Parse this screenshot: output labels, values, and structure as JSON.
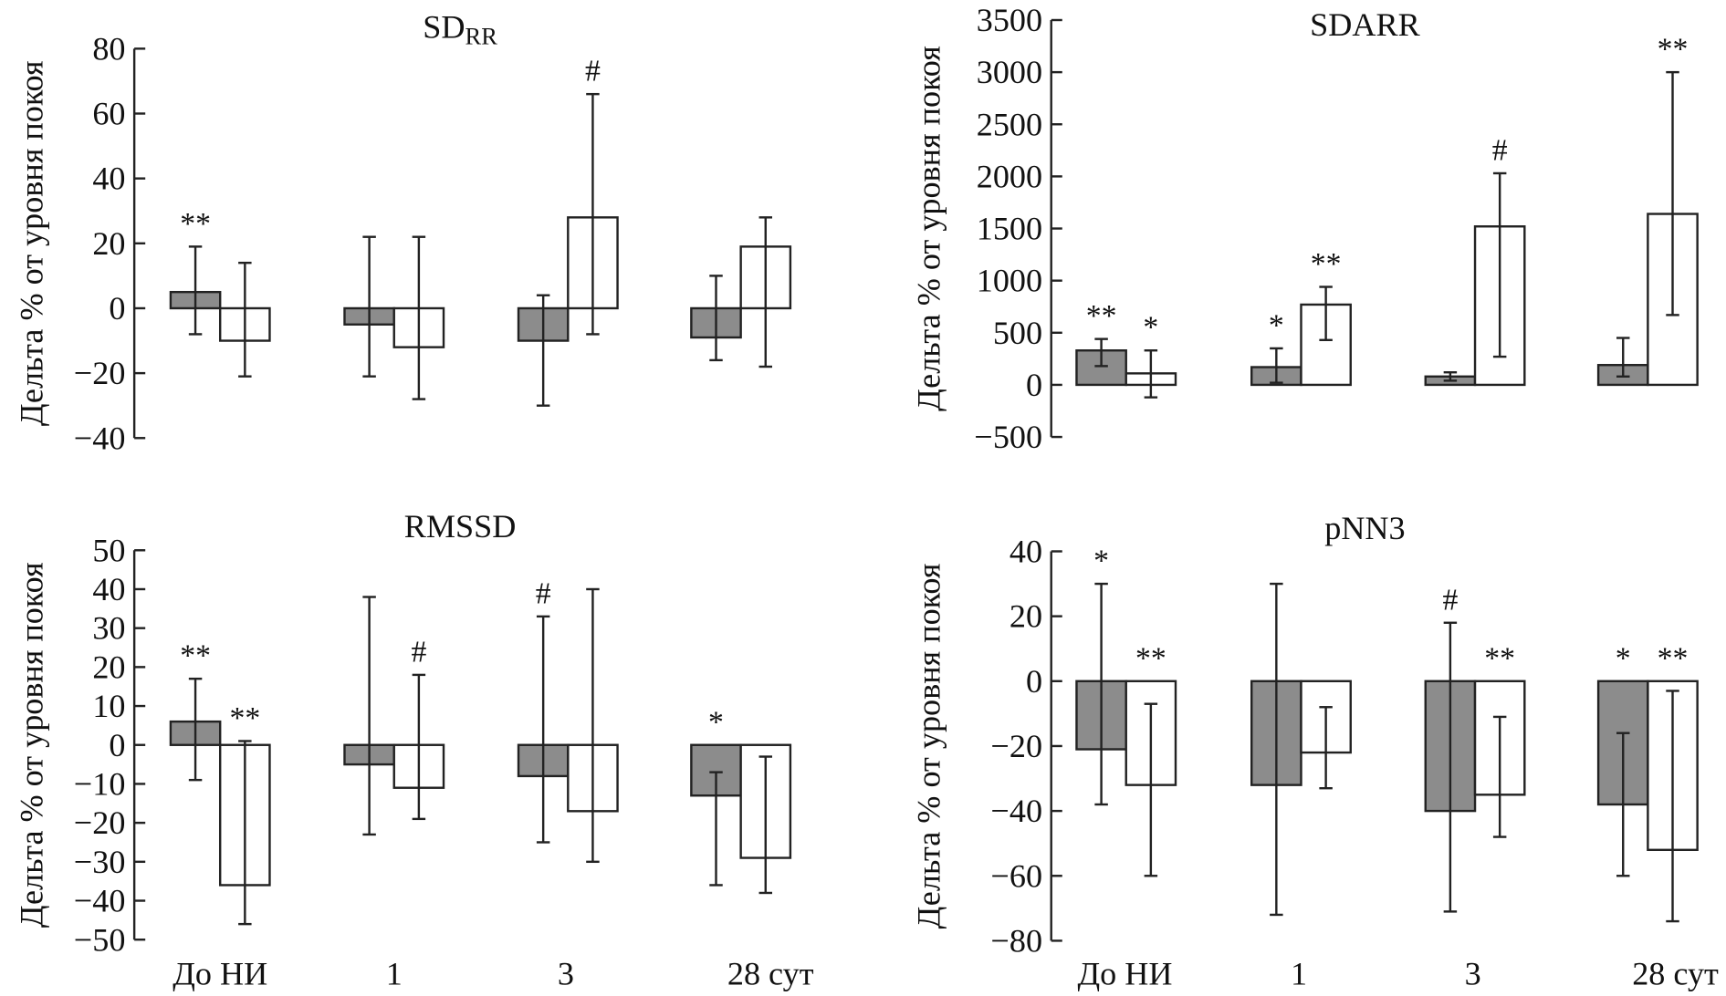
{
  "colors": {
    "group1": "#8c8c8c",
    "group2": "#ffffff",
    "stroke": "#222222"
  },
  "chart_data": [
    {
      "type": "bar",
      "title": "SD",
      "title_sub": "RR",
      "ylabel": "Дельта % от уровня покоя",
      "ylim": [
        -40,
        80
      ],
      "yticks": [
        -40,
        -20,
        0,
        20,
        40,
        60,
        80
      ],
      "categories": [
        "До НИ",
        "1",
        "3",
        "28 сут"
      ],
      "show_xlabels": false,
      "series": [
        {
          "values": [
            5,
            -5,
            -10,
            -9
          ],
          "err_low": [
            -8,
            -21,
            -30,
            -16
          ],
          "err_high": [
            19,
            22,
            4,
            10
          ],
          "annotations": [
            "**",
            "",
            "",
            ""
          ]
        },
        {
          "values": [
            -10,
            -12,
            28,
            19
          ],
          "err_low": [
            -21,
            -28,
            -8,
            -18
          ],
          "err_high": [
            14,
            22,
            66,
            28
          ],
          "annotations": [
            "",
            "",
            "#",
            ""
          ]
        }
      ]
    },
    {
      "type": "bar",
      "title": "SDARR",
      "title_sub": "",
      "ylabel": "Дельта % от уровня покоя",
      "ylim": [
        -500,
        3500
      ],
      "yticks": [
        -500,
        0,
        500,
        1000,
        1500,
        2000,
        2500,
        3000,
        3500
      ],
      "categories": [
        "До НИ",
        "1",
        "3",
        "28 сут"
      ],
      "show_xlabels": false,
      "series": [
        {
          "values": [
            330,
            170,
            80,
            190
          ],
          "err_low": [
            180,
            20,
            40,
            80
          ],
          "err_high": [
            440,
            350,
            120,
            450
          ],
          "annotations": [
            "**",
            "*",
            "",
            ""
          ]
        },
        {
          "values": [
            110,
            770,
            1520,
            1640
          ],
          "err_low": [
            -120,
            430,
            270,
            670
          ],
          "err_high": [
            330,
            940,
            2030,
            3000
          ],
          "annotations": [
            "*",
            "**",
            "#",
            "**"
          ]
        }
      ]
    },
    {
      "type": "bar",
      "title": "RMSSD",
      "title_sub": "",
      "ylabel": "Дельта % от уровня покоя",
      "ylim": [
        -50,
        50
      ],
      "yticks": [
        -50,
        -40,
        -30,
        -20,
        -10,
        0,
        10,
        20,
        30,
        40,
        50
      ],
      "categories": [
        "До НИ",
        "1",
        "3",
        "28 сут"
      ],
      "show_xlabels": true,
      "series": [
        {
          "values": [
            6,
            -5,
            -8,
            -13
          ],
          "err_low": [
            -9,
            -23,
            -25,
            -36
          ],
          "err_high": [
            17,
            38,
            33,
            -7
          ],
          "annotations": [
            "**",
            "",
            "#",
            "*"
          ]
        },
        {
          "values": [
            -36,
            -11,
            -17,
            -29
          ],
          "err_low": [
            -46,
            -19,
            -30,
            -38
          ],
          "err_high": [
            1,
            18,
            40,
            -3
          ],
          "annotations": [
            "**",
            "#",
            "",
            ""
          ]
        }
      ]
    },
    {
      "type": "bar",
      "title": "pNN3",
      "title_sub": "",
      "ylabel": "Дельта % от уровня покоя",
      "ylim": [
        -80,
        40
      ],
      "yticks": [
        -80,
        -60,
        -40,
        -20,
        0,
        20,
        40
      ],
      "categories": [
        "До НИ",
        "1",
        "3",
        "28 сут"
      ],
      "show_xlabels": true,
      "series": [
        {
          "values": [
            -21,
            -32,
            -40,
            -38
          ],
          "err_low": [
            -38,
            -72,
            -71,
            -60
          ],
          "err_high": [
            30,
            30,
            18,
            -16
          ],
          "annotations": [
            "*",
            "",
            "#",
            "*"
          ]
        },
        {
          "values": [
            -32,
            -22,
            -35,
            -52
          ],
          "err_low": [
            -60,
            -33,
            -48,
            -74
          ],
          "err_high": [
            -7,
            -8,
            -11,
            -3
          ],
          "annotations": [
            "**",
            "",
            "**",
            "**"
          ]
        }
      ]
    }
  ]
}
